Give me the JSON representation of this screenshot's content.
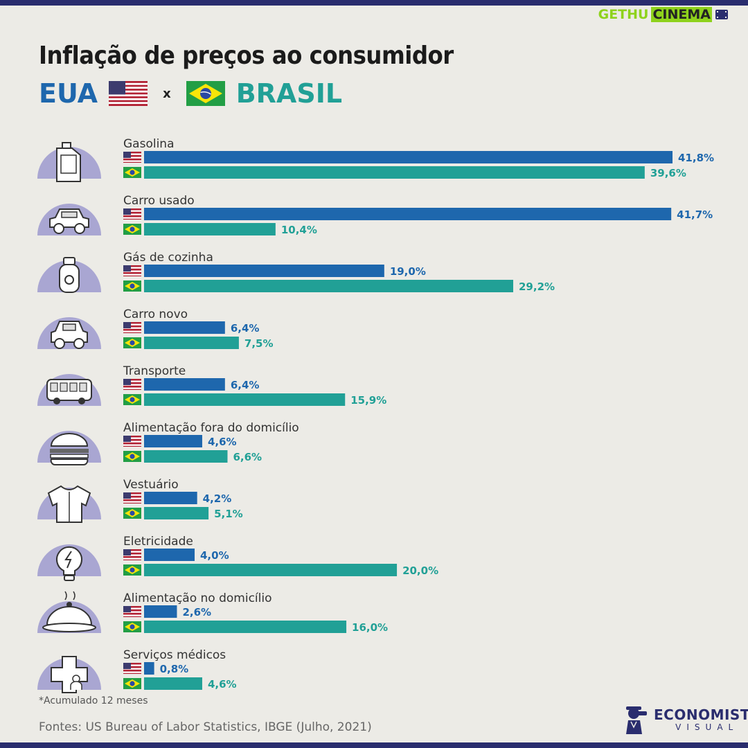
{
  "logo_top": {
    "part1": "GETHU",
    "part2": "CINEMA"
  },
  "title": "Inflação de preços ao consumidor",
  "subtitle": {
    "left": "EUA",
    "sep": "x",
    "right": "BRASIL"
  },
  "colors": {
    "us": "#1e67ad",
    "br": "#21a096",
    "icon_bg": "#a9a6d2",
    "navy": "#2a2d6e"
  },
  "chart_data": {
    "type": "bar",
    "orientation": "horizontal",
    "categories": [
      "Gasolina",
      "Carro usado",
      "Gás de cozinha",
      "Carro novo",
      "Transporte",
      "Alimentação fora do domicílio",
      "Vestuário",
      "Eletricidade",
      "Alimentação no domicílio",
      "Serviços médicos"
    ],
    "icons": [
      "fuel-can-icon",
      "used-car-icon",
      "gas-cylinder-icon",
      "new-car-icon",
      "bus-icon",
      "burger-icon",
      "shirt-icon",
      "lightbulb-icon",
      "cloche-icon",
      "medical-cross-icon"
    ],
    "series": [
      {
        "values": [
          41.8,
          41.7,
          19.0,
          6.4,
          6.4,
          4.6,
          4.2,
          4.0,
          2.6,
          0.8
        ],
        "labels": [
          "41,8%",
          "41,7%",
          "19,0%",
          "6,4%",
          "6,4%",
          "4,6%",
          "4,2%",
          "4,0%",
          "2,6%",
          "0,8%"
        ]
      },
      {
        "values": [
          39.6,
          10.4,
          29.2,
          7.5,
          15.9,
          6.6,
          5.1,
          20.0,
          16.0,
          4.6
        ],
        "labels": [
          "39,6%",
          "10,4%",
          "29,2%",
          "7,5%",
          "15,9%",
          "6,6%",
          "5,1%",
          "20,0%",
          "16,0%",
          "4,6%"
        ]
      }
    ],
    "xlim": [
      0,
      41.8
    ],
    "grid": false
  },
  "footnote": "*Acumulado 12 meses",
  "source": "Fontes: US Bureau of Labor Statistics, IBGE (Julho, 2021)",
  "brand": {
    "name": "ECONOMISTA",
    "sub": "VISUAL"
  }
}
